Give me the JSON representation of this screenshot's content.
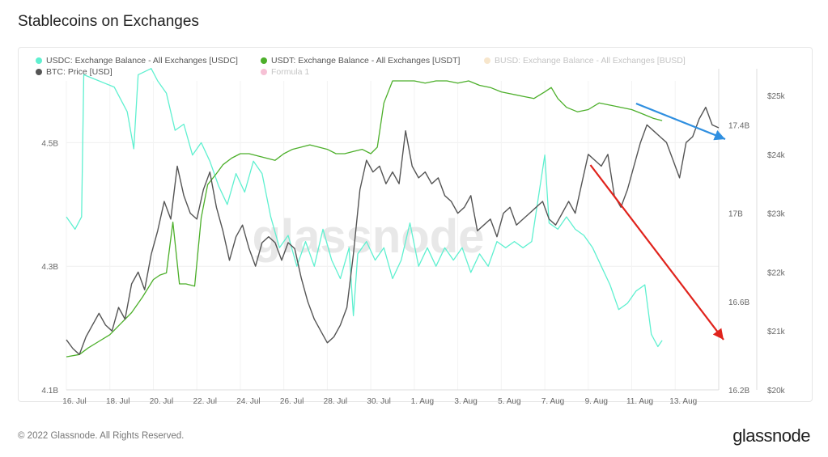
{
  "header": {
    "title": "Stablecoins on Exchanges"
  },
  "legend": [
    {
      "label": "USDC: Exchange Balance - All Exchanges [USDC]",
      "color": "#5ff0d0",
      "faded": false
    },
    {
      "label": "USDT: Exchange Balance - All Exchanges [USDT]",
      "color": "#4caf2a",
      "faded": false
    },
    {
      "label": "BUSD: Exchange Balance - All Exchanges [BUSD]",
      "color": "#e9b96e",
      "faded": true
    },
    {
      "label": "BTC: Price [USD]",
      "color": "#555555",
      "faded": false
    },
    {
      "label": "Formula 1",
      "color": "#e8508a",
      "faded": true
    }
  ],
  "watermark": "glassnode",
  "footer": {
    "copyright": "© 2022 Glassnode. All Rights Reserved.",
    "logo": "glassnode"
  },
  "chart_data": {
    "type": "line",
    "title": "Stablecoins on Exchanges",
    "x_ticks": [
      "16. Jul",
      "18. Jul",
      "20. Jul",
      "22. Jul",
      "24. Jul",
      "26. Jul",
      "28. Jul",
      "30. Jul",
      "1. Aug",
      "3. Aug",
      "5. Aug",
      "7. Aug",
      "9. Aug",
      "11. Aug",
      "13. Aug"
    ],
    "y_left_ticks": [
      "4.1B",
      "4.3B",
      "4.5B"
    ],
    "y_left_range": [
      4.1,
      4.6
    ],
    "y_mid_ticks": [
      "16.2B",
      "16.6B",
      "17B",
      "17.4B"
    ],
    "y_mid_range": [
      16.2,
      17.6
    ],
    "y_right_ticks": [
      "$20k",
      "$21k",
      "$22k",
      "$23k",
      "$24k",
      "$25k"
    ],
    "y_right_range": [
      20000,
      25000
    ],
    "grid": true,
    "legend_position": "top",
    "series": [
      {
        "name": "USDC: Exchange Balance - All Exchanges [USDC]",
        "axis": "left",
        "color": "#5ff0d0",
        "points": [
          [
            0,
            4.38
          ],
          [
            0.4,
            4.36
          ],
          [
            0.7,
            4.38
          ],
          [
            0.8,
            4.61
          ],
          [
            1.5,
            4.6
          ],
          [
            2.2,
            4.59
          ],
          [
            2.8,
            4.55
          ],
          [
            3.1,
            4.49
          ],
          [
            3.3,
            4.61
          ],
          [
            3.9,
            4.62
          ],
          [
            4.2,
            4.6
          ],
          [
            4.6,
            4.58
          ],
          [
            5.0,
            4.52
          ],
          [
            5.4,
            4.53
          ],
          [
            5.8,
            4.48
          ],
          [
            6.2,
            4.5
          ],
          [
            6.6,
            4.47
          ],
          [
            7.0,
            4.43
          ],
          [
            7.4,
            4.4
          ],
          [
            7.8,
            4.45
          ],
          [
            8.2,
            4.42
          ],
          [
            8.6,
            4.47
          ],
          [
            9.0,
            4.45
          ],
          [
            9.4,
            4.38
          ],
          [
            9.8,
            4.33
          ],
          [
            10.2,
            4.35
          ],
          [
            10.6,
            4.3
          ],
          [
            11.0,
            4.34
          ],
          [
            11.4,
            4.3
          ],
          [
            11.8,
            4.36
          ],
          [
            12.2,
            4.31
          ],
          [
            12.6,
            4.28
          ],
          [
            13.0,
            4.33
          ],
          [
            13.2,
            4.22
          ],
          [
            13.4,
            4.32
          ],
          [
            13.8,
            4.34
          ],
          [
            14.2,
            4.31
          ],
          [
            14.6,
            4.33
          ],
          [
            15.0,
            4.28
          ],
          [
            15.4,
            4.31
          ],
          [
            15.8,
            4.37
          ],
          [
            16.2,
            4.3
          ],
          [
            16.6,
            4.33
          ],
          [
            17.0,
            4.3
          ],
          [
            17.4,
            4.33
          ],
          [
            17.8,
            4.31
          ],
          [
            18.2,
            4.33
          ],
          [
            18.6,
            4.29
          ],
          [
            19.0,
            4.32
          ],
          [
            19.4,
            4.3
          ],
          [
            19.8,
            4.34
          ],
          [
            20.2,
            4.33
          ],
          [
            20.6,
            4.34
          ],
          [
            21.0,
            4.33
          ],
          [
            21.4,
            4.34
          ],
          [
            22.0,
            4.48
          ],
          [
            22.2,
            4.37
          ],
          [
            22.6,
            4.36
          ],
          [
            23.0,
            4.38
          ],
          [
            23.4,
            4.36
          ],
          [
            23.8,
            4.35
          ],
          [
            24.2,
            4.33
          ],
          [
            24.6,
            4.3
          ],
          [
            25.0,
            4.27
          ],
          [
            25.4,
            4.23
          ],
          [
            25.8,
            4.24
          ],
          [
            26.2,
            4.26
          ],
          [
            26.6,
            4.27
          ],
          [
            26.9,
            4.19
          ],
          [
            27.2,
            4.17
          ],
          [
            27.4,
            4.18
          ]
        ]
      },
      {
        "name": "USDT: Exchange Balance - All Exchanges [USDT]",
        "axis": "mid",
        "color": "#4caf2a",
        "points": [
          [
            0,
            16.35
          ],
          [
            0.6,
            16.36
          ],
          [
            1.0,
            16.39
          ],
          [
            1.5,
            16.42
          ],
          [
            2.0,
            16.45
          ],
          [
            2.5,
            16.5
          ],
          [
            3.0,
            16.55
          ],
          [
            3.5,
            16.62
          ],
          [
            4.0,
            16.7
          ],
          [
            4.3,
            16.72
          ],
          [
            4.6,
            16.73
          ],
          [
            4.9,
            16.96
          ],
          [
            5.2,
            16.68
          ],
          [
            5.5,
            16.68
          ],
          [
            5.9,
            16.67
          ],
          [
            6.2,
            16.98
          ],
          [
            6.5,
            17.13
          ],
          [
            6.9,
            17.18
          ],
          [
            7.2,
            17.22
          ],
          [
            7.6,
            17.25
          ],
          [
            8.0,
            17.27
          ],
          [
            8.4,
            17.27
          ],
          [
            8.8,
            17.26
          ],
          [
            9.2,
            17.25
          ],
          [
            9.6,
            17.24
          ],
          [
            10.0,
            17.27
          ],
          [
            10.4,
            17.29
          ],
          [
            10.8,
            17.3
          ],
          [
            11.2,
            17.31
          ],
          [
            11.6,
            17.3
          ],
          [
            12.0,
            17.29
          ],
          [
            12.4,
            17.27
          ],
          [
            12.8,
            17.27
          ],
          [
            13.2,
            17.28
          ],
          [
            13.6,
            17.29
          ],
          [
            14.0,
            17.27
          ],
          [
            14.3,
            17.3
          ],
          [
            14.6,
            17.5
          ],
          [
            15.0,
            17.6
          ],
          [
            15.5,
            17.6
          ],
          [
            16.0,
            17.6
          ],
          [
            16.5,
            17.59
          ],
          [
            17.0,
            17.6
          ],
          [
            17.5,
            17.6
          ],
          [
            18.0,
            17.59
          ],
          [
            18.5,
            17.6
          ],
          [
            19.0,
            17.58
          ],
          [
            19.5,
            17.57
          ],
          [
            20.0,
            17.55
          ],
          [
            20.5,
            17.54
          ],
          [
            21.0,
            17.53
          ],
          [
            21.5,
            17.52
          ],
          [
            22.0,
            17.55
          ],
          [
            22.3,
            17.57
          ],
          [
            22.6,
            17.52
          ],
          [
            23.0,
            17.48
          ],
          [
            23.5,
            17.46
          ],
          [
            24.0,
            17.47
          ],
          [
            24.5,
            17.5
          ],
          [
            25.0,
            17.49
          ],
          [
            25.5,
            17.48
          ],
          [
            26.0,
            17.47
          ],
          [
            26.5,
            17.45
          ],
          [
            27.0,
            17.43
          ],
          [
            27.4,
            17.42
          ]
        ]
      },
      {
        "name": "BTC: Price [USD]",
        "axis": "right",
        "color": "#555555",
        "points": [
          [
            0,
            20850
          ],
          [
            0.3,
            20700
          ],
          [
            0.6,
            20600
          ],
          [
            0.9,
            20900
          ],
          [
            1.2,
            21100
          ],
          [
            1.5,
            21300
          ],
          [
            1.8,
            21100
          ],
          [
            2.1,
            21000
          ],
          [
            2.4,
            21400
          ],
          [
            2.7,
            21200
          ],
          [
            3.0,
            21800
          ],
          [
            3.3,
            22000
          ],
          [
            3.6,
            21700
          ],
          [
            3.9,
            22300
          ],
          [
            4.2,
            22700
          ],
          [
            4.5,
            23200
          ],
          [
            4.8,
            22900
          ],
          [
            5.1,
            23800
          ],
          [
            5.4,
            23300
          ],
          [
            5.7,
            23000
          ],
          [
            6.0,
            22900
          ],
          [
            6.3,
            23400
          ],
          [
            6.6,
            23700
          ],
          [
            6.9,
            23100
          ],
          [
            7.2,
            22700
          ],
          [
            7.5,
            22200
          ],
          [
            7.8,
            22600
          ],
          [
            8.1,
            22800
          ],
          [
            8.4,
            22400
          ],
          [
            8.7,
            22100
          ],
          [
            9.0,
            22500
          ],
          [
            9.3,
            22600
          ],
          [
            9.6,
            22500
          ],
          [
            9.9,
            22200
          ],
          [
            10.2,
            22500
          ],
          [
            10.5,
            22400
          ],
          [
            10.8,
            21900
          ],
          [
            11.1,
            21500
          ],
          [
            11.4,
            21200
          ],
          [
            11.7,
            21000
          ],
          [
            12.0,
            20800
          ],
          [
            12.3,
            20900
          ],
          [
            12.6,
            21100
          ],
          [
            12.9,
            21400
          ],
          [
            13.2,
            22300
          ],
          [
            13.5,
            23400
          ],
          [
            13.8,
            23900
          ],
          [
            14.1,
            23700
          ],
          [
            14.4,
            23800
          ],
          [
            14.7,
            23500
          ],
          [
            15.0,
            23700
          ],
          [
            15.3,
            23500
          ],
          [
            15.6,
            24400
          ],
          [
            15.9,
            23800
          ],
          [
            16.2,
            23600
          ],
          [
            16.5,
            23700
          ],
          [
            16.8,
            23500
          ],
          [
            17.1,
            23600
          ],
          [
            17.4,
            23300
          ],
          [
            17.7,
            23200
          ],
          [
            18.0,
            23000
          ],
          [
            18.3,
            23100
          ],
          [
            18.6,
            23300
          ],
          [
            18.9,
            22700
          ],
          [
            19.2,
            22800
          ],
          [
            19.5,
            22900
          ],
          [
            19.8,
            22600
          ],
          [
            20.1,
            23000
          ],
          [
            20.4,
            23100
          ],
          [
            20.7,
            22800
          ],
          [
            21.0,
            22900
          ],
          [
            21.3,
            23000
          ],
          [
            21.6,
            23100
          ],
          [
            21.9,
            23200
          ],
          [
            22.2,
            22900
          ],
          [
            22.5,
            22800
          ],
          [
            22.8,
            23000
          ],
          [
            23.1,
            23200
          ],
          [
            23.4,
            23000
          ],
          [
            23.7,
            23500
          ],
          [
            24.0,
            24000
          ],
          [
            24.3,
            23900
          ],
          [
            24.6,
            23800
          ],
          [
            24.9,
            24000
          ],
          [
            25.2,
            23300
          ],
          [
            25.5,
            23100
          ],
          [
            25.8,
            23400
          ],
          [
            26.1,
            23800
          ],
          [
            26.4,
            24200
          ],
          [
            26.7,
            24500
          ],
          [
            27.0,
            24400
          ],
          [
            27.3,
            24300
          ],
          [
            27.6,
            24200
          ],
          [
            27.9,
            23900
          ],
          [
            28.2,
            23600
          ],
          [
            28.5,
            24200
          ],
          [
            28.8,
            24300
          ],
          [
            29.1,
            24600
          ],
          [
            29.4,
            24800
          ],
          [
            29.7,
            24500
          ],
          [
            30.0,
            24450
          ]
        ]
      }
    ],
    "annotations": [
      {
        "type": "arrow",
        "color": "#2f8fe0",
        "description": "blue trend arrow"
      },
      {
        "type": "arrow",
        "color": "#e0231c",
        "description": "red trend arrow"
      }
    ]
  }
}
